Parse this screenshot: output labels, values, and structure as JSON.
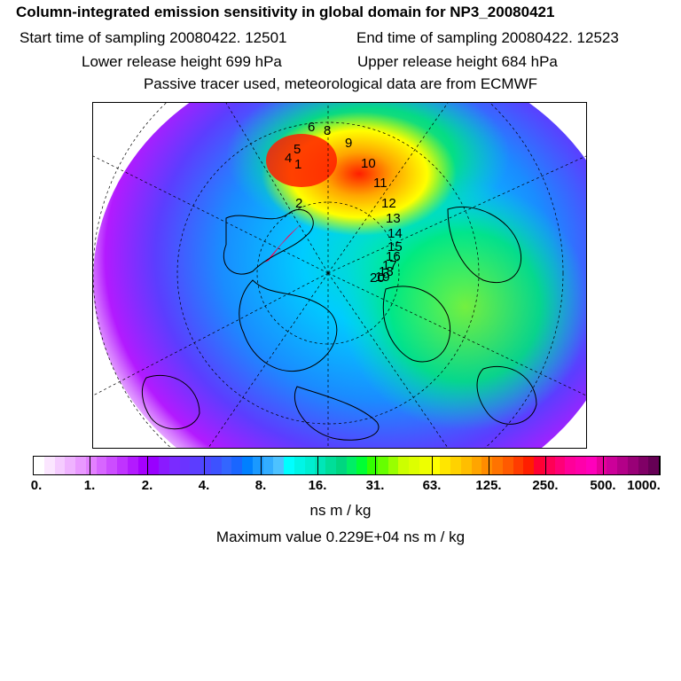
{
  "header": {
    "title": "Column-integrated emission sensitivity in global domain for NP3_20080421",
    "start_time": "Start time of sampling 20080422. 12501",
    "end_time": "End time of sampling 20080422. 12523",
    "lower_release": "Lower release height  699 hPa",
    "upper_release": "Upper release height  684 hPa",
    "tracer_note": "Passive tracer used, meteorological data are from ECMWF"
  },
  "map": {
    "trajectory_labels": [
      "1",
      "2",
      "4",
      "5",
      "6",
      "8",
      "9",
      "10",
      "11",
      "12",
      "13",
      "14",
      "15",
      "16",
      "17",
      "18",
      "19",
      "20"
    ]
  },
  "colorbar": {
    "tick_labels": [
      "0.",
      "1.",
      "2.",
      "4.",
      "8.",
      "16.",
      "31.",
      "63.",
      "125.",
      "250.",
      "500.",
      "1000."
    ],
    "colors": [
      "#ffffff",
      "#fbe6ff",
      "#f5ccff",
      "#efb3ff",
      "#e999ff",
      "#e380ff",
      "#d766ff",
      "#cc4dff",
      "#c033ff",
      "#b31aff",
      "#a600ff",
      "#9900ff",
      "#8a1aff",
      "#7a2bff",
      "#6b33ff",
      "#5c3dff",
      "#4d47ff",
      "#3d52ff",
      "#3366ff",
      "#1a66ff",
      "#0080ff",
      "#1a99ff",
      "#33adff",
      "#4dc2ff",
      "#00ffff",
      "#00f5e6",
      "#00eed1",
      "#00e6b8",
      "#00de99",
      "#00d680",
      "#00ee66",
      "#00ff33",
      "#33ff00",
      "#66ff00",
      "#99ff00",
      "#ccff00",
      "#ddff00",
      "#eeff00",
      "#ffff00",
      "#ffe600",
      "#ffd200",
      "#ffbe00",
      "#ffa500",
      "#ff8c00",
      "#ff7300",
      "#ff5a00",
      "#ff3c00",
      "#ff1e00",
      "#ff0033",
      "#ff0055",
      "#ff0077",
      "#ff0099",
      "#ff00aa",
      "#ff00bb",
      "#e6009a",
      "#cc0099",
      "#b30088",
      "#990077",
      "#800066",
      "#660055"
    ],
    "units": "ns m / kg",
    "max_value": "Maximum value  0.229E+04 ns m / kg"
  }
}
